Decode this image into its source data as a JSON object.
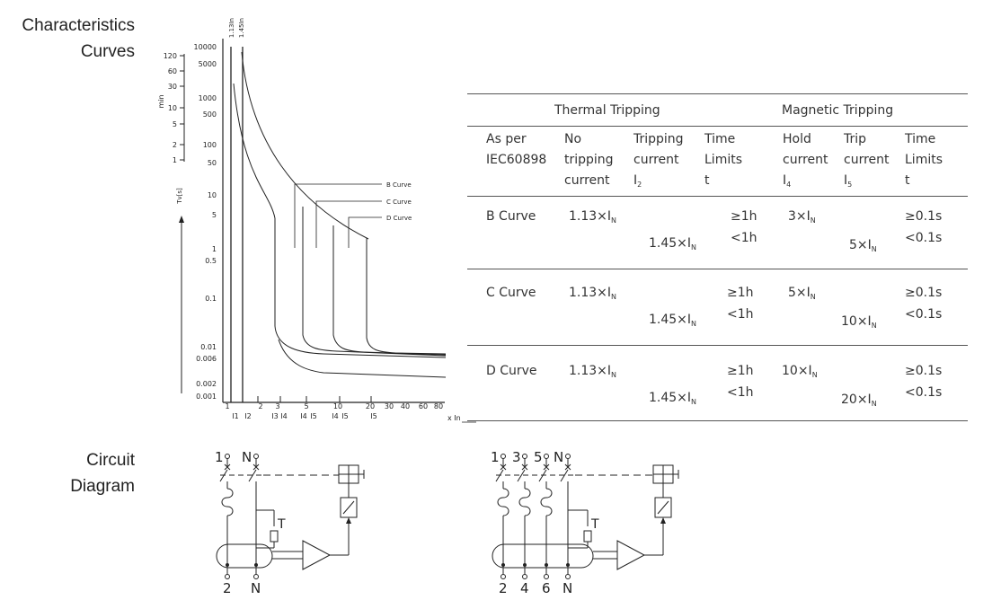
{
  "section_titles": {
    "characteristics": [
      "Characteristics",
      "Curves"
    ],
    "circuit": [
      "Circuit",
      "Diagram"
    ]
  },
  "chart": {
    "left_axis_unit": "min",
    "left_axis_ticks": [
      "120",
      "60",
      "30",
      "10",
      "5",
      "2",
      "1"
    ],
    "right_axis_ticks": [
      "10000",
      "5000",
      "1000",
      "500",
      "100",
      "50",
      "10",
      "5",
      "1",
      "0.5",
      "0.1",
      "0.01",
      "0.006",
      "0.002",
      "0.001"
    ],
    "y_label": "Tv[s]",
    "top_labels": [
      "1.13In",
      "1.45In"
    ],
    "x_ticks": [
      "1",
      "2",
      "3",
      "5",
      "10",
      "20",
      "30",
      "40",
      "60",
      "80"
    ],
    "x_sub_ticks": [
      "I1",
      "I2",
      "I3",
      "I4",
      "I4",
      "I5",
      "I4",
      "I5",
      "I5"
    ],
    "x_label": "x In",
    "curve_labels": [
      "B Curve",
      "C Curve",
      "D Curve"
    ]
  },
  "table": {
    "group_headers": {
      "thermal": "Thermal Tripping",
      "magnetic": "Magnetic Tripping"
    },
    "col_headers": {
      "standard": [
        "As per",
        "IEC60898"
      ],
      "no_trip": [
        "No",
        "tripping",
        "current"
      ],
      "trip_current": [
        "Tripping",
        "current",
        "I"
      ],
      "trip_current_sub": "2",
      "time_limits": [
        "Time",
        "Limits",
        "t"
      ],
      "hold": [
        "Hold",
        "current",
        "I"
      ],
      "hold_sub": "4",
      "trip_current_mag": [
        "Trip",
        "current",
        "I"
      ],
      "trip_current_mag_sub": "5",
      "time_limits_mag": [
        "Time",
        "Limits",
        "t"
      ]
    },
    "rows": [
      {
        "name": "B Curve",
        "no_trip": "1.13×I",
        "trip": "1.45×I",
        "time1": "≥1h",
        "time2": "<1h",
        "hold": "3×I",
        "trip_mag": "5×I",
        "mag1": "≥0.1s",
        "mag2": "<0.1s"
      },
      {
        "name": "C Curve",
        "no_trip": "1.13×I",
        "trip": "1.45×I",
        "time1": "≥1h",
        "time2": "<1h",
        "hold": "5×I",
        "trip_mag": "10×I",
        "mag1": "≥0.1s",
        "mag2": "<0.1s"
      },
      {
        "name": "D Curve",
        "no_trip": "1.13×I",
        "trip": "1.45×I",
        "time1": "≥1h",
        "time2": "<1h",
        "hold": "10×I",
        "trip_mag": "20×I",
        "mag1": "≥0.1s",
        "mag2": "<0.1s"
      }
    ],
    "sub_n": "N"
  },
  "circuits": {
    "two_pole": {
      "top_labels": [
        "1",
        "N"
      ],
      "bottom_labels": [
        "2",
        "N"
      ],
      "test_label": "T"
    },
    "four_pole": {
      "top_labels": [
        "1",
        "3",
        "5",
        "N"
      ],
      "bottom_labels": [
        "2",
        "4",
        "6",
        "N"
      ],
      "test_label": "T"
    }
  }
}
